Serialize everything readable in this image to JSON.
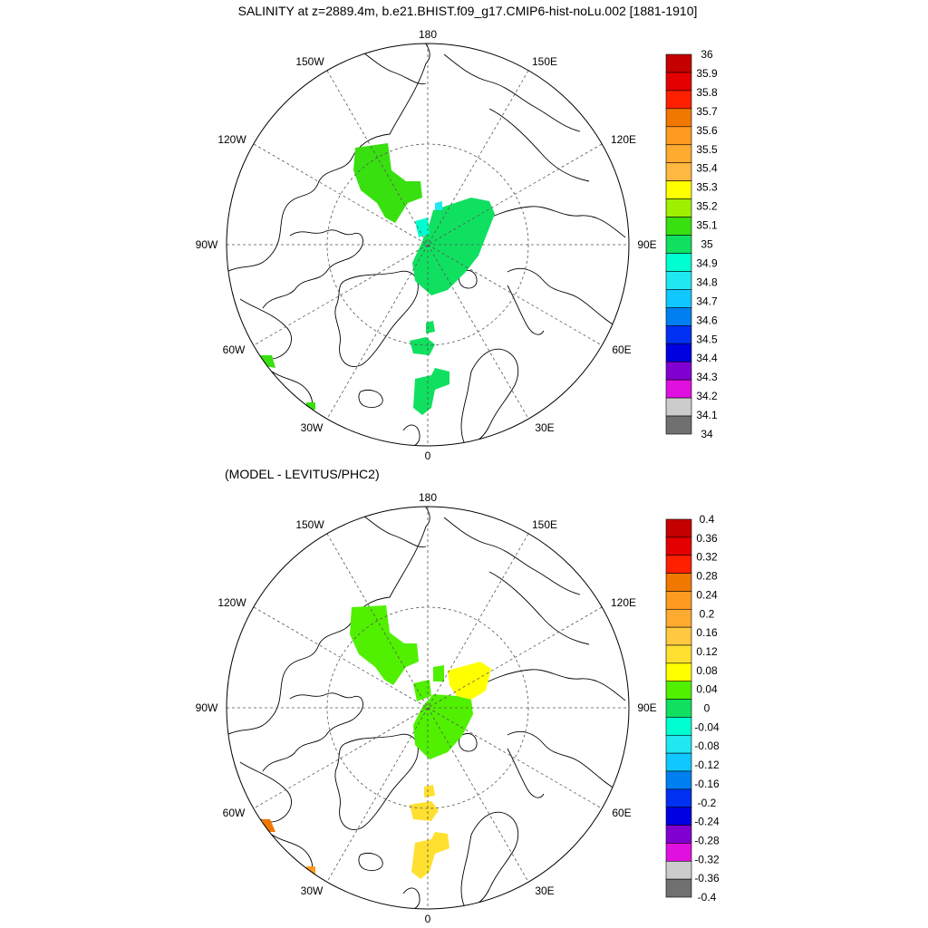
{
  "title": "SALINITY at z=2889.4m, b.e21.BHIST.f09_g17.CMIP6-hist-noLu.002 [1881-1910]",
  "panels": [
    {
      "id": "salinity",
      "subtitle": "",
      "lon_labels": [
        "180",
        "150E",
        "120E",
        "90E",
        "60E",
        "30E",
        "0",
        "30W",
        "60W",
        "90W",
        "120W",
        "150W"
      ],
      "colorbar": {
        "levels": [
          "36",
          "35.9",
          "35.8",
          "35.7",
          "35.6",
          "35.5",
          "35.4",
          "35.3",
          "35.2",
          "35.1",
          "35",
          "34.9",
          "34.8",
          "34.7",
          "34.6",
          "34.5",
          "34.4",
          "34.3",
          "34.2",
          "34.1",
          "34"
        ],
        "colors": [
          "#c40000",
          "#e40000",
          "#ff2000",
          "#f07800",
          "#ff9a20",
          "#ffaa30",
          "#ffb840",
          "#ffff00",
          "#9ff000",
          "#38e010",
          "#10e060",
          "#00ffd0",
          "#20e8f0",
          "#10c8ff",
          "#0080f0",
          "#0030f0",
          "#0000e0",
          "#8000d0",
          "#e010e0",
          "#cccccc",
          "#707070"
        ]
      }
    },
    {
      "id": "difference",
      "subtitle": "(MODEL - LEVITUS/PHC2)",
      "lon_labels": [
        "180",
        "150E",
        "120E",
        "90E",
        "60E",
        "30E",
        "0",
        "30W",
        "60W",
        "90W",
        "120W",
        "150W"
      ],
      "colorbar": {
        "levels": [
          "0.4",
          "0.36",
          "0.32",
          "0.28",
          "0.24",
          "0.2",
          "0.16",
          "0.12",
          "0.08",
          "0.04",
          "0",
          "-0.04",
          "-0.08",
          "-0.12",
          "-0.16",
          "-0.2",
          "-0.24",
          "-0.28",
          "-0.32",
          "-0.36",
          "-0.4"
        ],
        "colors": [
          "#c40000",
          "#e40000",
          "#ff2000",
          "#f07800",
          "#ff9a20",
          "#ffaa30",
          "#ffc840",
          "#ffe030",
          "#ffff00",
          "#50f000",
          "#10e060",
          "#00ffd0",
          "#20e8f0",
          "#10c8ff",
          "#0080f0",
          "#0030f0",
          "#0000e0",
          "#8000d0",
          "#e010e0",
          "#cccccc",
          "#707070"
        ]
      }
    }
  ]
}
